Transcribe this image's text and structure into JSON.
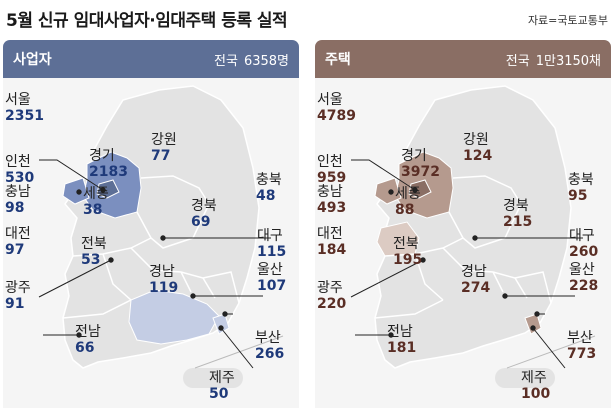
{
  "title": "5월 신규 임대사업자·임대주택 등록 실적",
  "source": "자료=국토교통부",
  "colors": {
    "left_header": "#5d6f96",
    "right_header": "#8a6e64",
    "left_value": "#1f3a7a",
    "right_value": "#5a2e25",
    "left_dark": "#7b8fbf",
    "left_light": "#c4cde4",
    "right_dark": "#b59a8e",
    "right_light": "#dccbc3",
    "land": "#e3e3e3"
  },
  "panels": [
    {
      "label": "사업자",
      "total_label": "전국",
      "total_value": "6358명"
    },
    {
      "label": "주택",
      "total_label": "전국",
      "total_value": "1만3150채"
    }
  ],
  "chart_data": [
    {
      "type": "map",
      "title": "사업자",
      "total": "6358명",
      "regions": [
        {
          "name": "서울",
          "value": 2351
        },
        {
          "name": "인천",
          "value": 530
        },
        {
          "name": "경기",
          "value": 2183
        },
        {
          "name": "강원",
          "value": 77
        },
        {
          "name": "충북",
          "value": 48
        },
        {
          "name": "충남",
          "value": 98
        },
        {
          "name": "세종",
          "value": 38
        },
        {
          "name": "경북",
          "value": 69
        },
        {
          "name": "대전",
          "value": 97
        },
        {
          "name": "대구",
          "value": 115
        },
        {
          "name": "전북",
          "value": 53
        },
        {
          "name": "울산",
          "value": 107
        },
        {
          "name": "경남",
          "value": 119
        },
        {
          "name": "광주",
          "value": 91
        },
        {
          "name": "부산",
          "value": 266
        },
        {
          "name": "전남",
          "value": 66
        },
        {
          "name": "제주",
          "value": 50
        }
      ]
    },
    {
      "type": "map",
      "title": "주택",
      "total": "1만3150채",
      "regions": [
        {
          "name": "서울",
          "value": 4789
        },
        {
          "name": "인천",
          "value": 959
        },
        {
          "name": "경기",
          "value": 3972
        },
        {
          "name": "강원",
          "value": 124
        },
        {
          "name": "충북",
          "value": 95
        },
        {
          "name": "충남",
          "value": 493
        },
        {
          "name": "세종",
          "value": 88
        },
        {
          "name": "경북",
          "value": 215
        },
        {
          "name": "대전",
          "value": 184
        },
        {
          "name": "대구",
          "value": 260
        },
        {
          "name": "전북",
          "value": 195
        },
        {
          "name": "울산",
          "value": 228
        },
        {
          "name": "경남",
          "value": 274
        },
        {
          "name": "광주",
          "value": 220
        },
        {
          "name": "부산",
          "value": 773
        },
        {
          "name": "전남",
          "value": 181
        },
        {
          "name": "제주",
          "value": 100
        }
      ]
    }
  ]
}
